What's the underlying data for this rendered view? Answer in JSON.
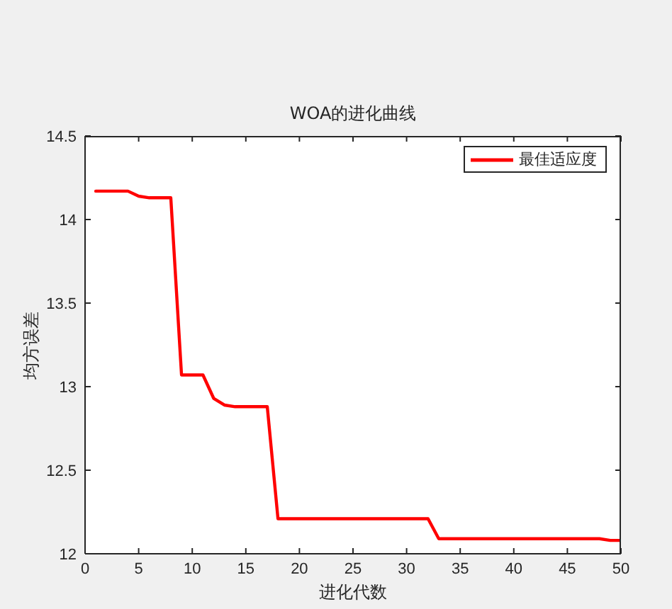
{
  "chart_data": {
    "type": "line",
    "title": "WOA的进化曲线",
    "xlabel": "进化代数",
    "ylabel": "均方误差",
    "x": [
      1,
      2,
      3,
      4,
      5,
      6,
      7,
      8,
      9,
      10,
      11,
      12,
      13,
      14,
      15,
      16,
      17,
      18,
      19,
      20,
      21,
      22,
      23,
      24,
      25,
      26,
      27,
      28,
      29,
      30,
      31,
      32,
      33,
      34,
      35,
      36,
      37,
      38,
      39,
      40,
      41,
      42,
      43,
      44,
      45,
      46,
      47,
      48,
      49,
      50
    ],
    "series": [
      {
        "name": "最佳适应度",
        "color": "#ff0000",
        "values": [
          14.17,
          14.17,
          14.17,
          14.17,
          14.14,
          14.13,
          14.13,
          14.13,
          13.07,
          13.07,
          13.07,
          12.93,
          12.89,
          12.88,
          12.88,
          12.88,
          12.88,
          12.21,
          12.21,
          12.21,
          12.21,
          12.21,
          12.21,
          12.21,
          12.21,
          12.21,
          12.21,
          12.21,
          12.21,
          12.21,
          12.21,
          12.21,
          12.09,
          12.09,
          12.09,
          12.09,
          12.09,
          12.09,
          12.09,
          12.09,
          12.09,
          12.09,
          12.09,
          12.09,
          12.09,
          12.09,
          12.09,
          12.09,
          12.08,
          12.08
        ]
      }
    ],
    "xlim": [
      0,
      50
    ],
    "xticks": [
      0,
      5,
      10,
      15,
      20,
      25,
      30,
      35,
      40,
      45,
      50
    ],
    "ylim": [
      12,
      14.5
    ],
    "yticks": [
      12,
      12.5,
      13,
      13.5,
      14,
      14.5
    ],
    "legend": "top right",
    "marker": "none",
    "line_style": "solid"
  }
}
